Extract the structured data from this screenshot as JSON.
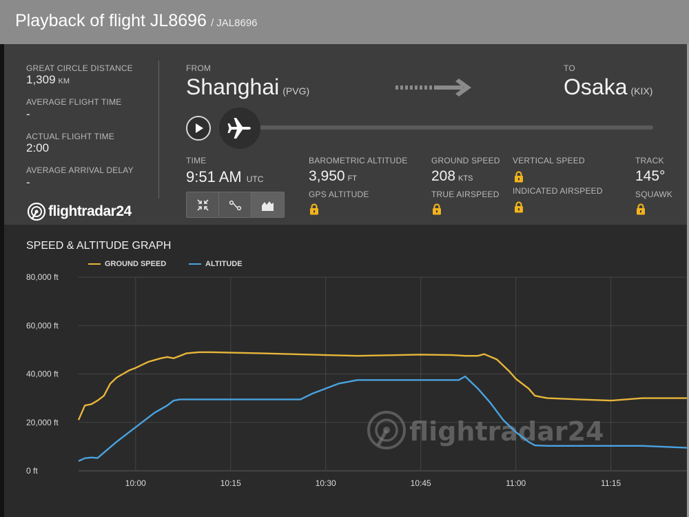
{
  "header": {
    "title": "Playback of flight JL8696",
    "subtitle": "/ JAL8696"
  },
  "stats": {
    "great_circle_distance_label": "GREAT CIRCLE DISTANCE",
    "great_circle_distance_value": "1,309",
    "great_circle_distance_unit": "KM",
    "average_flight_time_label": "AVERAGE FLIGHT TIME",
    "average_flight_time_value": "-",
    "actual_flight_time_label": "ACTUAL FLIGHT TIME",
    "actual_flight_time_value": "2:00",
    "average_arrival_delay_label": "AVERAGE ARRIVAL DELAY",
    "average_arrival_delay_value": "-"
  },
  "brand": {
    "logo_text": "flightradar24"
  },
  "route": {
    "from_label": "FROM",
    "from_city": "Shanghai",
    "from_code": "(PVG)",
    "to_label": "TO",
    "to_city": "Osaka",
    "to_code": "(KIX)"
  },
  "playback": {
    "progress": 0.0
  },
  "telemetry": {
    "time_label": "TIME",
    "time_value": "9:51 AM",
    "time_unit": "UTC",
    "baro_alt_label": "BAROMETRIC ALTITUDE",
    "baro_alt_value": "3,950",
    "baro_alt_unit": "FT",
    "gps_alt_label": "GPS ALTITUDE",
    "ground_speed_label": "GROUND SPEED",
    "ground_speed_value": "208",
    "ground_speed_unit": "KTS",
    "true_airspeed_label": "TRUE AIRSPEED",
    "vertical_speed_label": "VERTICAL SPEED",
    "indicated_airspeed_label": "INDICATED AIRSPEED",
    "track_label": "TRACK",
    "track_value": "145°",
    "squawk_label": "SQUAWK"
  },
  "icons": {
    "play": "play-icon",
    "plane": "plane-icon",
    "arrow": "dotted-arrow-icon",
    "lock": "lock-icon",
    "collapse": "collapse-icon",
    "route": "route-icon",
    "graph": "area-chart-icon"
  },
  "colors": {
    "ground_speed": "#e8b63a",
    "altitude": "#4aa3e0",
    "lock": "#f2b31c"
  },
  "graph": {
    "title": "SPEED & ALTITUDE GRAPH",
    "legend_ground_speed": "GROUND SPEED",
    "legend_altitude": "ALTITUDE"
  },
  "chart_data": {
    "type": "line",
    "title": "SPEED & ALTITUDE GRAPH",
    "xlabel": "",
    "ylabel": "",
    "ylim": [
      0,
      80000
    ],
    "xlim": [
      "09:51",
      "11:27"
    ],
    "y_ticks": [
      "0 ft",
      "20,000 ft",
      "40,000 ft",
      "60,000 ft",
      "80,000 ft"
    ],
    "x_ticks": [
      "10:00",
      "10:15",
      "10:30",
      "10:45",
      "11:00",
      "11:15"
    ],
    "grid": true,
    "legend_position": "top-left",
    "series": [
      {
        "name": "GROUND SPEED",
        "color": "#e8b63a",
        "x": [
          "09:51",
          "09:52",
          "09:53",
          "09:54",
          "09:55",
          "09:56",
          "09:57",
          "09:58",
          "09:59",
          "10:00",
          "10:02",
          "10:04",
          "10:05",
          "10:06",
          "10:07",
          "10:08",
          "10:10",
          "10:12",
          "10:15",
          "10:20",
          "10:30",
          "10:35",
          "10:45",
          "10:50",
          "10:52",
          "10:54",
          "10:55",
          "10:57",
          "10:59",
          "11:00",
          "11:02",
          "11:03",
          "11:04",
          "11:05",
          "11:10",
          "11:15",
          "11:20",
          "11:27"
        ],
        "y": [
          21000,
          27000,
          27500,
          29000,
          31000,
          36000,
          38500,
          40000,
          41500,
          42500,
          45000,
          46500,
          47000,
          46500,
          47500,
          48500,
          49000,
          49000,
          48800,
          48500,
          47800,
          47500,
          48000,
          47800,
          47500,
          47500,
          48200,
          46000,
          41000,
          38000,
          34000,
          31000,
          30500,
          30000,
          29500,
          29000,
          30000,
          30000
        ]
      },
      {
        "name": "ALTITUDE",
        "color": "#4aa3e0",
        "x": [
          "09:51",
          "09:52",
          "09:53",
          "09:54",
          "09:57",
          "10:00",
          "10:03",
          "10:05",
          "10:06",
          "10:07",
          "10:10",
          "10:15",
          "10:20",
          "10:26",
          "10:28",
          "10:30",
          "10:32",
          "10:35",
          "10:40",
          "10:45",
          "10:48",
          "10:51",
          "10:52",
          "10:54",
          "10:56",
          "10:58",
          "11:00",
          "11:02",
          "11:03",
          "11:05",
          "11:15",
          "11:20",
          "11:27"
        ],
        "y": [
          4000,
          5200,
          5500,
          5300,
          12000,
          18000,
          24000,
          27000,
          29000,
          29500,
          29500,
          29500,
          29500,
          29500,
          32000,
          34000,
          36000,
          37500,
          37500,
          37500,
          37500,
          37500,
          39000,
          34000,
          28000,
          21000,
          16000,
          12000,
          10500,
          10300,
          10300,
          10300,
          9500
        ]
      }
    ]
  }
}
